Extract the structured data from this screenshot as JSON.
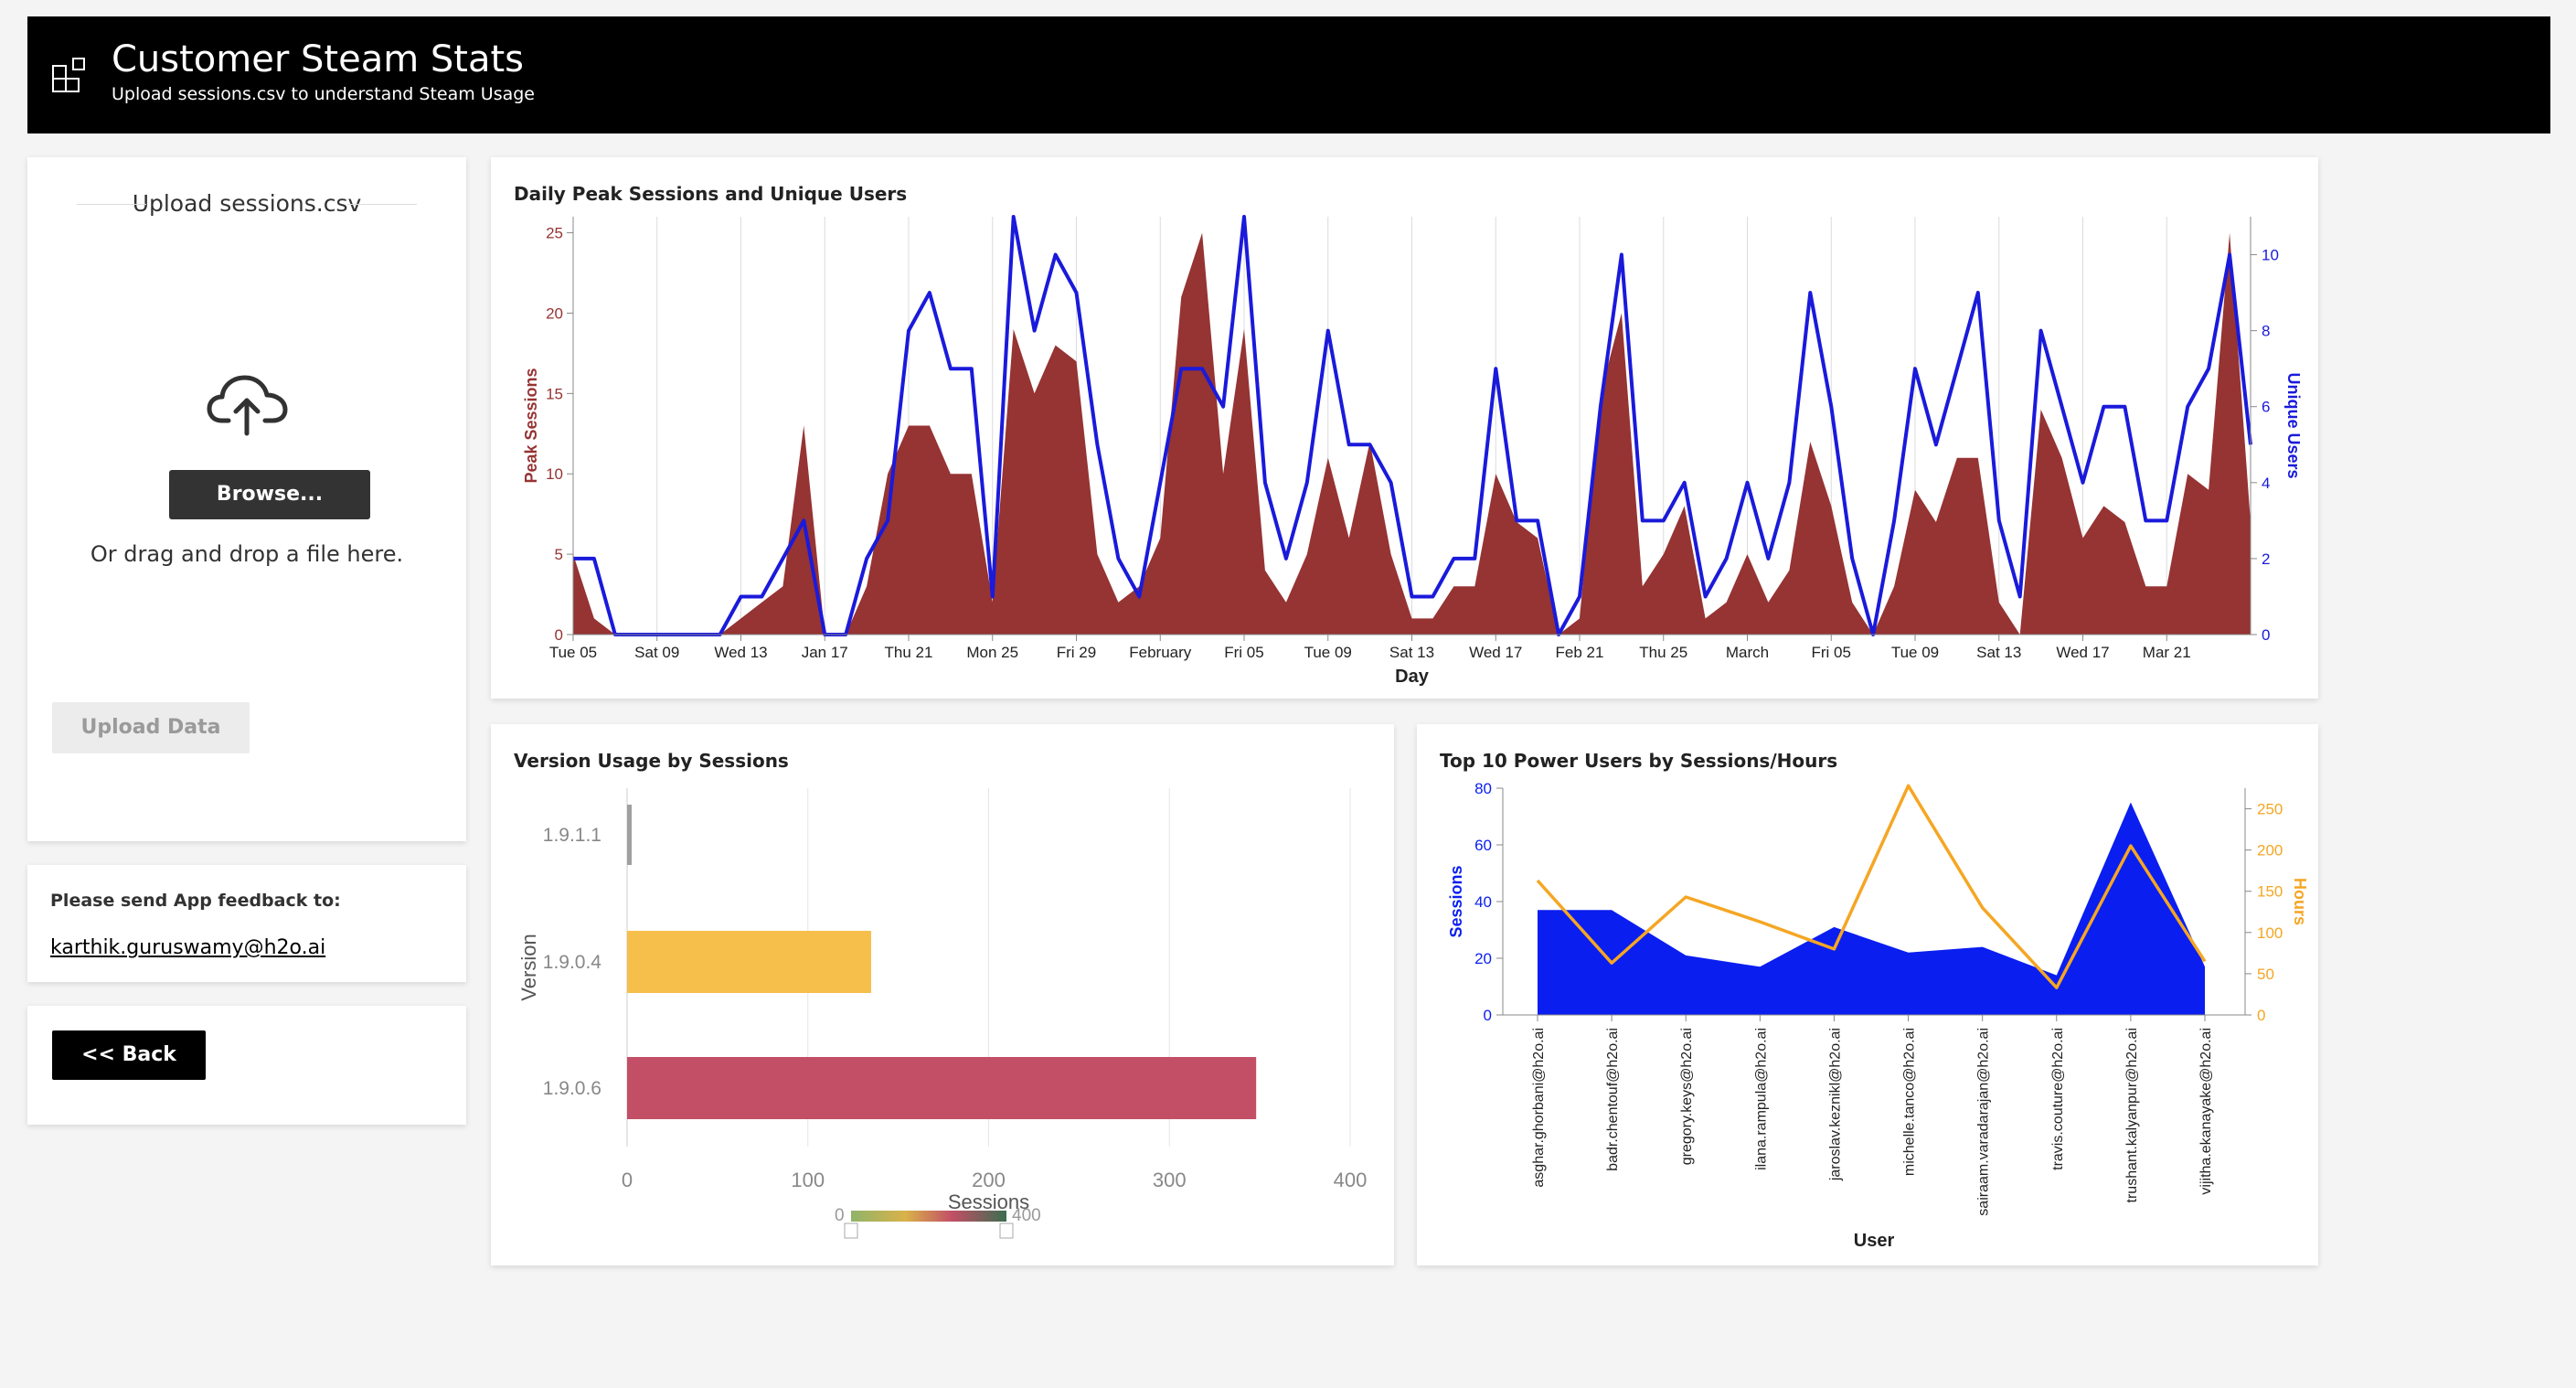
{
  "header": {
    "title": "Customer Steam Stats",
    "subtitle": "Upload sessions.csv to understand Steam Usage",
    "icon": "dashboard-grid-icon"
  },
  "upload": {
    "title": "Upload sessions.csv",
    "browse_label": "Browse...",
    "drag_text": "Or drag and drop a file here.",
    "upload_button": "Upload Data",
    "icon": "cloud-upload-icon"
  },
  "feedback": {
    "label": "Please send App feedback to:",
    "email": "karthik.guruswamy@h2o.ai"
  },
  "back": {
    "label": "<< Back"
  },
  "colors": {
    "sessions_area": "#963333",
    "unique_users_line": "#1a1adb",
    "users_sessions_area": "#0a1ef0",
    "hours_line": "#f5a623",
    "bar_1911": "#a0a0a0",
    "bar_1904": "#f6bf4b",
    "bar_1906": "#c24f66"
  },
  "chart_data": [
    {
      "type": "area",
      "title": "Daily Peak Sessions and Unique Users",
      "xlabel": "Day",
      "ylabel": "Peak Sessions",
      "y2label": "Unique Users",
      "ylim": [
        0,
        26
      ],
      "y2lim": [
        0,
        11
      ],
      "yticks": [
        0,
        5,
        10,
        15,
        20,
        25
      ],
      "y2ticks": [
        0,
        2,
        4,
        6,
        8,
        10
      ],
      "xtick_labels": [
        "Tue 05",
        "Sat 09",
        "Wed 13",
        "Jan 17",
        "Thu 21",
        "Mon 25",
        "Fri 29",
        "February",
        "Fri 05",
        "Tue 09",
        "Sat 13",
        "Wed 17",
        "Feb 21",
        "Thu 25",
        "March",
        "Fri 05",
        "Tue 09",
        "Sat 13",
        "Wed 17",
        "Mar 21"
      ],
      "series": [
        {
          "name": "Peak Sessions",
          "chart": "area",
          "values": [
            5,
            1,
            0,
            0,
            0,
            0,
            0,
            0,
            1,
            2,
            3,
            13,
            0,
            0,
            3,
            10,
            13,
            13,
            10,
            10,
            2,
            19,
            15,
            18,
            17,
            5,
            2,
            3,
            6,
            21,
            25,
            10,
            19,
            4,
            2,
            5,
            11,
            6,
            12,
            5,
            1,
            1,
            3,
            3,
            10,
            7,
            6,
            0,
            1,
            15,
            20,
            3,
            5,
            8,
            1,
            2,
            5,
            2,
            4,
            12,
            8,
            2,
            0,
            3,
            9,
            7,
            11,
            11,
            2,
            0,
            14,
            11,
            6,
            8,
            7,
            3,
            3,
            10,
            9,
            25,
            7
          ]
        },
        {
          "name": "Unique Users",
          "chart": "line",
          "values": [
            2,
            2,
            0,
            0,
            0,
            0,
            0,
            0,
            1,
            1,
            2,
            3,
            0,
            0,
            2,
            3,
            8,
            9,
            7,
            7,
            1,
            11,
            8,
            10,
            9,
            5,
            2,
            1,
            4,
            7,
            7,
            6,
            11,
            4,
            2,
            4,
            8,
            5,
            5,
            4,
            1,
            1,
            2,
            2,
            7,
            3,
            3,
            0,
            1,
            6,
            10,
            3,
            3,
            4,
            1,
            2,
            4,
            2,
            4,
            9,
            6,
            2,
            0,
            3,
            7,
            5,
            7,
            9,
            3,
            1,
            8,
            6,
            4,
            6,
            6,
            3,
            3,
            6,
            7,
            10,
            5
          ]
        }
      ]
    },
    {
      "type": "bar",
      "orientation": "horizontal",
      "title": "Version Usage by Sessions",
      "xlabel": "Sessions",
      "ylabel": "Version",
      "xlim": [
        0,
        400
      ],
      "xticks": [
        0,
        100,
        200,
        300,
        400
      ],
      "categories": [
        "1.9.1.1",
        "1.9.0.4",
        "1.9.0.6"
      ],
      "values": [
        2,
        135,
        348
      ],
      "legend": {
        "min_label": "0",
        "max_label": "400"
      }
    },
    {
      "type": "area",
      "title": "Top 10 Power Users by Sessions/Hours",
      "xlabel": "User",
      "ylabel": "Sessions",
      "y2label": "Hours",
      "ylim": [
        0,
        80
      ],
      "y2lim": [
        0,
        275
      ],
      "yticks": [
        0,
        20,
        40,
        60,
        80
      ],
      "y2ticks": [
        0,
        50,
        100,
        150,
        200,
        250
      ],
      "categories": [
        "asghar.ghorbani@h2o.ai",
        "badr.chentouf@h2o.ai",
        "gregory.keys@h2o.ai",
        "ilana.rampula@h2o.ai",
        "jaroslav.keznikl@h2o.ai",
        "michelle.tanco@h2o.ai",
        "sairaam.varadarajan@h2o.ai",
        "travis.couture@h2o.ai",
        "trushant.kalyanpur@h2o.ai",
        "vijitha.ekanayake@h2o.ai"
      ],
      "series": [
        {
          "name": "Sessions",
          "chart": "area",
          "values": [
            37,
            37,
            21,
            17,
            31,
            22,
            24,
            14,
            75,
            17
          ]
        },
        {
          "name": "Hours",
          "chart": "line",
          "values": [
            163,
            63,
            143,
            113,
            80,
            278,
            130,
            33,
            205,
            65
          ]
        }
      ]
    }
  ]
}
